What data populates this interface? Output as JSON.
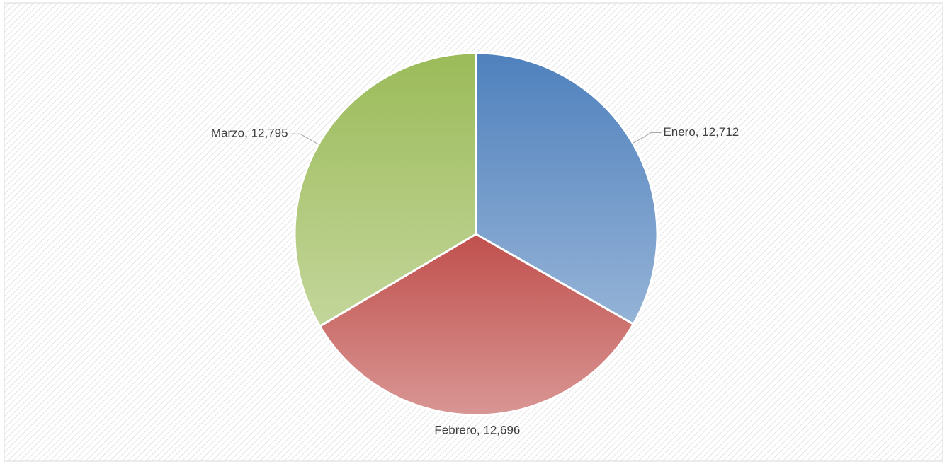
{
  "chart_data": {
    "type": "pie",
    "categories": [
      "Enero",
      "Febrero",
      "Marzo"
    ],
    "values": [
      12712,
      12696,
      12795
    ],
    "value_labels": [
      "Enero, 12,712",
      "Febrero, 12,696",
      "Marzo, 12,795"
    ],
    "colors": [
      "#4f81bd",
      "#c0504d",
      "#9bbb59"
    ]
  }
}
